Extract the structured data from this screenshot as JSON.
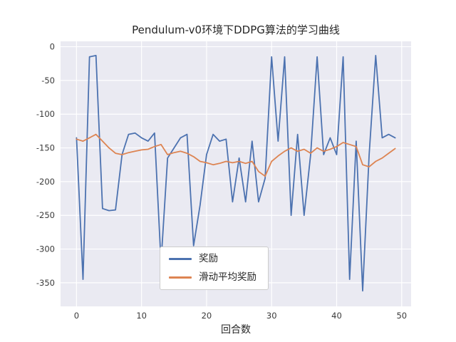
{
  "chart_data": {
    "type": "line",
    "title": "Pendulum-v0环境下DDPG算法的学习曲线",
    "xlabel": "回合数",
    "ylabel": "",
    "x": [
      0,
      1,
      2,
      3,
      4,
      5,
      6,
      7,
      8,
      9,
      10,
      11,
      12,
      13,
      14,
      15,
      16,
      17,
      18,
      19,
      20,
      21,
      22,
      23,
      24,
      25,
      26,
      27,
      28,
      29,
      30,
      31,
      32,
      33,
      34,
      35,
      36,
      37,
      38,
      39,
      40,
      41,
      42,
      43,
      44,
      45,
      46,
      47,
      48,
      49
    ],
    "series": [
      {
        "name": "奖励",
        "color": "#4C72B0",
        "values": [
          -135,
          -345,
          -15,
          -13,
          -240,
          -243,
          -242,
          -160,
          -130,
          -128,
          -135,
          -140,
          -128,
          -320,
          -165,
          -150,
          -135,
          -130,
          -295,
          -235,
          -160,
          -130,
          -140,
          -137,
          -230,
          -165,
          -230,
          -140,
          -230,
          -195,
          -15,
          -140,
          -15,
          -250,
          -130,
          -250,
          -160,
          -15,
          -160,
          -135,
          -160,
          -15,
          -345,
          -140,
          -362,
          -160,
          -13,
          -135,
          -130,
          -135
        ]
      },
      {
        "name": "滑动平均奖励",
        "color": "#DD8452",
        "values": [
          -137,
          -140,
          -135,
          -130,
          -140,
          -150,
          -158,
          -160,
          -157,
          -155,
          -153,
          -152,
          -148,
          -145,
          -160,
          -157,
          -155,
          -158,
          -163,
          -170,
          -172,
          -175,
          -173,
          -170,
          -172,
          -170,
          -173,
          -170,
          -185,
          -192,
          -170,
          -162,
          -155,
          -150,
          -155,
          -152,
          -158,
          -150,
          -155,
          -152,
          -148,
          -142,
          -145,
          -148,
          -175,
          -178,
          -170,
          -165,
          -158,
          -151
        ]
      }
    ],
    "xticks": [
      0,
      10,
      20,
      30,
      40,
      50
    ],
    "yticks": [
      0,
      -50,
      -100,
      -150,
      -200,
      -250,
      -300,
      -350
    ],
    "xlim": [
      -2.45,
      51.45
    ],
    "ylim": [
      -385,
      8
    ],
    "grid": true,
    "legend_position": "lower center inside axes",
    "axes_bg": "#EAEAF2",
    "grid_color": "#FFFFFF",
    "figure_bg": "#FFFFFF",
    "tick_color": "#3a3a3a"
  }
}
